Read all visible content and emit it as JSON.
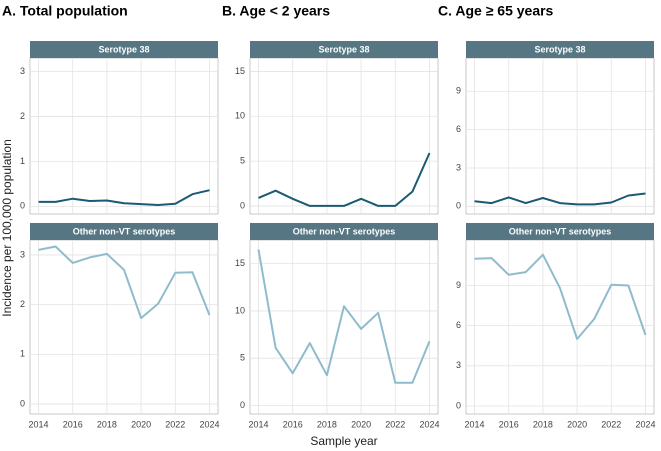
{
  "chart_data": [
    {
      "type": "line",
      "title": "A. Total population",
      "subtitle": "Serotype 38",
      "ylabel": "Incidence per 100,000 population",
      "x": [
        2014,
        2015,
        2016,
        2017,
        2018,
        2019,
        2020,
        2021,
        2022,
        2023,
        2024
      ],
      "values": [
        0.1,
        0.1,
        0.17,
        0.12,
        0.13,
        0.07,
        0.05,
        0.03,
        0.06,
        0.27,
        0.36
      ],
      "color": "#1a5a73",
      "xlim": [
        2013.5,
        2024.5
      ],
      "xticks": [
        2014,
        2016,
        2018,
        2020,
        2022,
        2024
      ],
      "ylim": [
        -0.17,
        3.3
      ],
      "yticks": [
        0,
        1,
        2,
        3
      ],
      "grid": true
    },
    {
      "type": "line",
      "subtitle": "Other non-VT serotypes",
      "x": [
        2014,
        2015,
        2016,
        2017,
        2018,
        2019,
        2020,
        2021,
        2022,
        2023,
        2024
      ],
      "values": [
        3.1,
        3.17,
        2.84,
        2.95,
        3.02,
        2.7,
        1.73,
        2.02,
        2.64,
        2.65,
        1.79
      ],
      "color": "#8fbccc",
      "xlim": [
        2013.5,
        2024.5
      ],
      "xticks": [
        2014,
        2016,
        2018,
        2020,
        2022,
        2024
      ],
      "ylim": [
        -0.2,
        3.3
      ],
      "yticks": [
        0,
        1,
        2,
        3
      ],
      "grid": true
    },
    {
      "type": "line",
      "title": "B. Age < 2 years",
      "subtitle": "Serotype 38",
      "x": [
        2014,
        2015,
        2016,
        2017,
        2018,
        2019,
        2020,
        2021,
        2022,
        2023,
        2024
      ],
      "values": [
        0.9,
        1.7,
        0.8,
        0,
        0,
        0,
        0.8,
        0,
        0,
        1.6,
        5.9
      ],
      "color": "#1a5a73",
      "xlim": [
        2013.5,
        2024.5
      ],
      "xticks": [
        2014,
        2016,
        2018,
        2020,
        2022,
        2024
      ],
      "ylim": [
        -0.9,
        16.5
      ],
      "yticks": [
        0,
        5,
        10,
        15
      ],
      "grid": true
    },
    {
      "type": "line",
      "subtitle": "Other non-VT serotypes",
      "xlabel": "Sample year",
      "x": [
        2014,
        2015,
        2016,
        2017,
        2018,
        2019,
        2020,
        2021,
        2022,
        2023,
        2024
      ],
      "values": [
        16.5,
        6.1,
        3.4,
        6.6,
        3.2,
        10.5,
        8.1,
        9.8,
        2.4,
        2.4,
        6.8
      ],
      "color": "#8fbccc",
      "xlim": [
        2013.5,
        2024.5
      ],
      "xticks": [
        2014,
        2016,
        2018,
        2020,
        2022,
        2024
      ],
      "ylim": [
        -0.9,
        17.5
      ],
      "yticks": [
        0,
        5,
        10,
        15
      ],
      "grid": true
    },
    {
      "type": "line",
      "title": "C. Age ≥ 65 years",
      "subtitle": "Serotype 38",
      "x": [
        2014,
        2015,
        2016,
        2017,
        2018,
        2019,
        2020,
        2021,
        2022,
        2023,
        2024
      ],
      "values": [
        0.4,
        0.25,
        0.7,
        0.25,
        0.65,
        0.25,
        0.15,
        0.15,
        0.3,
        0.85,
        1.0
      ],
      "color": "#1a5a73",
      "xlim": [
        2013.5,
        2024.5
      ],
      "xticks": [
        2014,
        2016,
        2018,
        2020,
        2022,
        2024
      ],
      "ylim": [
        -0.6,
        11.6
      ],
      "yticks": [
        0,
        3,
        6,
        9
      ],
      "grid": true
    },
    {
      "type": "line",
      "subtitle": "Other non-VT serotypes",
      "x": [
        2014,
        2015,
        2016,
        2017,
        2018,
        2019,
        2020,
        2021,
        2022,
        2023,
        2024
      ],
      "values": [
        11.0,
        11.05,
        9.8,
        10.0,
        11.3,
        8.8,
        5.0,
        6.5,
        9.05,
        9.0,
        5.3
      ],
      "color": "#8fbccc",
      "xlim": [
        2013.5,
        2024.5
      ],
      "xticks": [
        2014,
        2016,
        2018,
        2020,
        2022,
        2024
      ],
      "ylim": [
        -0.6,
        12.4
      ],
      "yticks": [
        0,
        3,
        6,
        9
      ],
      "grid": true
    }
  ]
}
